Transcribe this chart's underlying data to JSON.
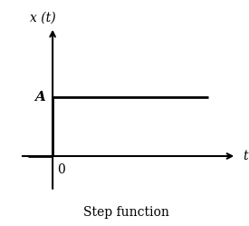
{
  "title": "Step function",
  "xlabel": "t",
  "ylabel": "x (t)",
  "A_label": "A",
  "zero_label": "0",
  "step_value": 1.0,
  "xlim": [
    -0.8,
    4.5
  ],
  "ylim": [
    -0.6,
    2.2
  ],
  "line_color": "#000000",
  "background_color": "#ffffff",
  "title_fontsize": 10,
  "label_fontsize": 10,
  "tick_fontsize": 10,
  "axis_lw": 1.5,
  "step_lw": 2.0
}
